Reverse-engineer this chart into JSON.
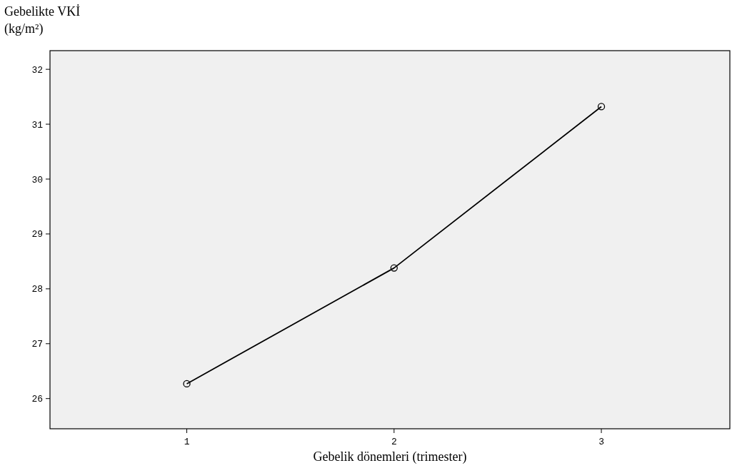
{
  "chart_data": {
    "type": "line",
    "xlabel": "Gebelik dönemleri (trimester)",
    "ylabel": "Gebelikte VKİ\n(kg/m²)",
    "x": [
      1,
      2,
      3
    ],
    "series": [
      {
        "color": "#000000",
        "values": [
          26.27,
          28.38,
          31.32
        ]
      }
    ],
    "xlim": [
      0.34,
      3.62
    ],
    "xticks": [
      1,
      2,
      3
    ],
    "ylim": [
      25.45,
      32.34
    ],
    "yticks": [
      26,
      27,
      28,
      29,
      30,
      31,
      32
    ],
    "marker": "circle",
    "line_style": "solid"
  }
}
